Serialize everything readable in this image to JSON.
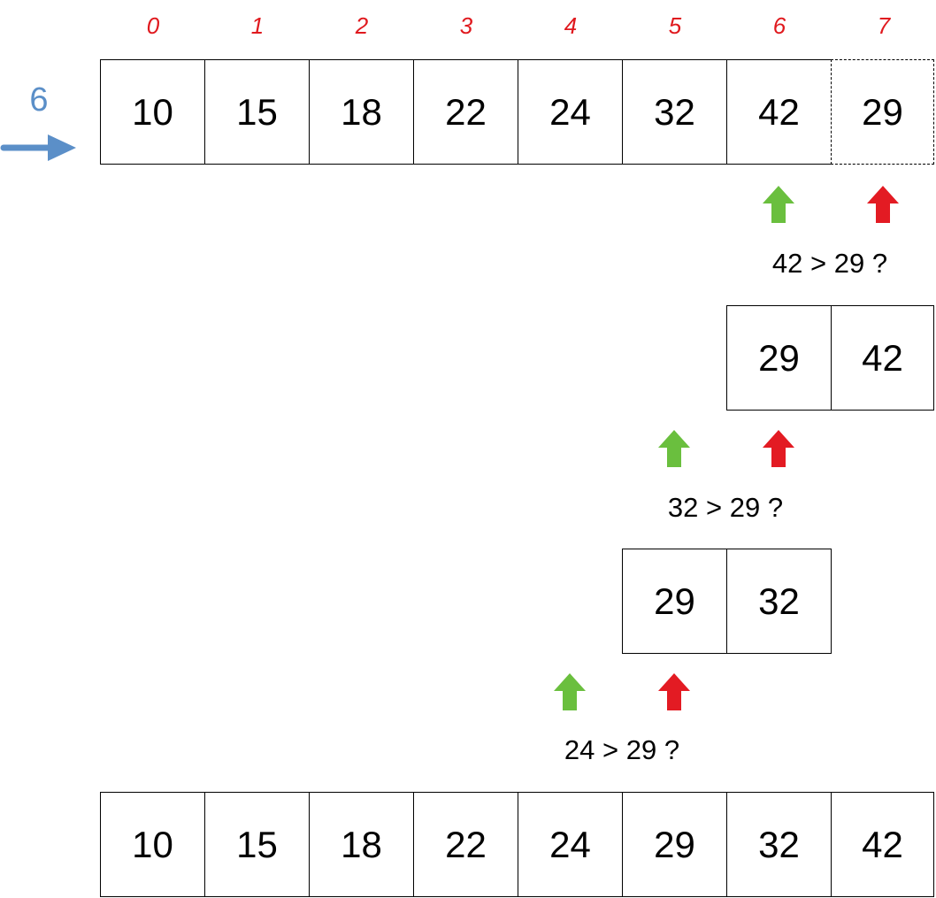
{
  "pointer": {
    "label": "6",
    "color": "#5b8fc8"
  },
  "indices": [
    "0",
    "1",
    "2",
    "3",
    "4",
    "5",
    "6",
    "7"
  ],
  "top_row": {
    "values": [
      "10",
      "15",
      "18",
      "22",
      "24",
      "32",
      "42",
      "29"
    ],
    "dashed_index": 7
  },
  "steps": [
    {
      "comparison": "42 > 29 ?",
      "pair": [
        "29",
        "42"
      ]
    },
    {
      "comparison": "32 > 29 ?",
      "pair": [
        "29",
        "32"
      ]
    },
    {
      "comparison": "24 > 29 ?"
    }
  ],
  "result_row": {
    "values": [
      "10",
      "15",
      "18",
      "22",
      "24",
      "29",
      "32",
      "42"
    ]
  },
  "colors": {
    "green_arrow": "#6abf3e",
    "red_arrow": "#e31b23",
    "index_text": "#e0191e"
  }
}
